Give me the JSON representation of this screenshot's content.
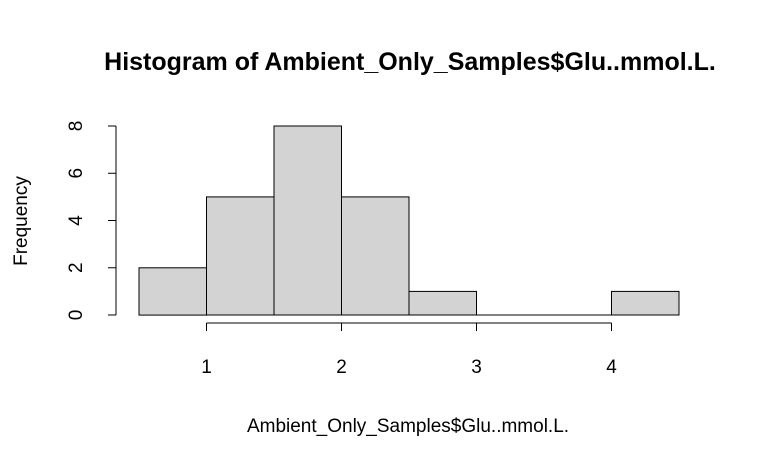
{
  "chart_data": {
    "type": "bar",
    "title": "Histogram of Ambient_Only_Samples$Glu..mmol.L.",
    "xlabel": "Ambient_Only_Samples$Glu..mmol.L.",
    "ylabel": "Frequency",
    "bins": [
      {
        "from": 0.5,
        "to": 1.0,
        "count": 2
      },
      {
        "from": 1.0,
        "to": 1.5,
        "count": 5
      },
      {
        "from": 1.5,
        "to": 2.0,
        "count": 8
      },
      {
        "from": 2.0,
        "to": 2.5,
        "count": 5
      },
      {
        "from": 2.5,
        "to": 3.0,
        "count": 1
      },
      {
        "from": 3.0,
        "to": 3.5,
        "count": 0
      },
      {
        "from": 3.5,
        "to": 4.0,
        "count": 0
      },
      {
        "from": 4.0,
        "to": 4.5,
        "count": 1
      }
    ],
    "xticks": [
      "1",
      "2",
      "3",
      "4"
    ],
    "yticks": [
      "0",
      "2",
      "4",
      "6",
      "8"
    ],
    "xlim": [
      0.5,
      4.5
    ],
    "ylim": [
      0,
      8
    ],
    "grid": false,
    "bar_fill": "#d3d3d3",
    "bar_stroke": "#000000"
  }
}
